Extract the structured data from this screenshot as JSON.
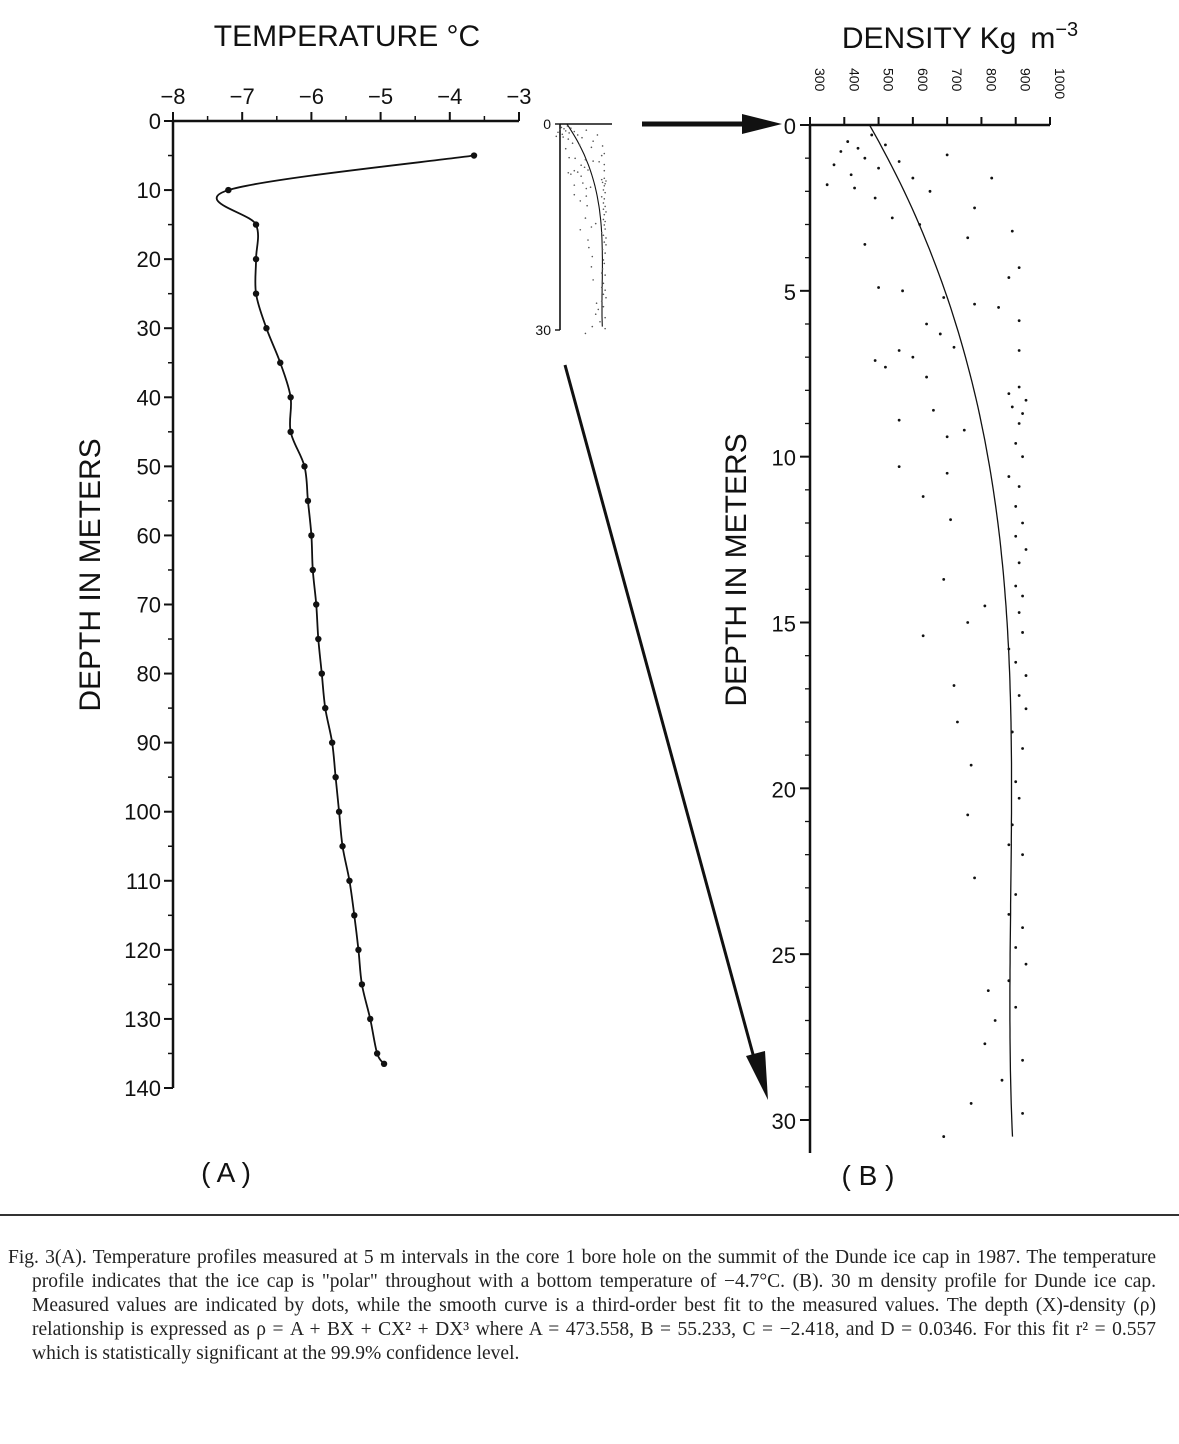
{
  "chart_data": [
    {
      "type": "line",
      "panel_label": "( A )",
      "title": "",
      "xlabel": "TEMPERATURE °C",
      "ylabel": "DEPTH IN METERS",
      "xlim": [
        -8,
        -3
      ],
      "ylim": [
        0,
        140
      ],
      "xticks": [
        "−8",
        "−7",
        "−6",
        "−5",
        "−4",
        "−3"
      ],
      "yticks": [
        "0",
        "10",
        "20",
        "30",
        "40",
        "50",
        "60",
        "70",
        "80",
        "90",
        "100",
        "110",
        "120",
        "130",
        "140"
      ],
      "series": [
        {
          "points": [
            {
              "x": -3.65,
              "y": 5
            },
            {
              "x": -7.2,
              "y": 10
            },
            {
              "x": -6.8,
              "y": 15
            },
            {
              "x": -6.8,
              "y": 20
            },
            {
              "x": -6.8,
              "y": 25
            },
            {
              "x": -6.65,
              "y": 30
            },
            {
              "x": -6.45,
              "y": 35
            },
            {
              "x": -6.3,
              "y": 40
            },
            {
              "x": -6.3,
              "y": 45
            },
            {
              "x": -6.1,
              "y": 50
            },
            {
              "x": -6.05,
              "y": 55
            },
            {
              "x": -6.0,
              "y": 60
            },
            {
              "x": -5.98,
              "y": 65
            },
            {
              "x": -5.93,
              "y": 70
            },
            {
              "x": -5.9,
              "y": 75
            },
            {
              "x": -5.85,
              "y": 80
            },
            {
              "x": -5.8,
              "y": 85
            },
            {
              "x": -5.7,
              "y": 90
            },
            {
              "x": -5.65,
              "y": 95
            },
            {
              "x": -5.6,
              "y": 100
            },
            {
              "x": -5.55,
              "y": 105
            },
            {
              "x": -5.45,
              "y": 110
            },
            {
              "x": -5.38,
              "y": 115
            },
            {
              "x": -5.32,
              "y": 120
            },
            {
              "x": -5.27,
              "y": 125
            },
            {
              "x": -5.15,
              "y": 130
            },
            {
              "x": -5.05,
              "y": 135
            },
            {
              "x": -4.95,
              "y": 136.5
            }
          ]
        }
      ]
    },
    {
      "type": "scatter",
      "panel_label": "( B )",
      "title": "",
      "xlabel": "DENSITY Kg",
      "xlabel_unit": "m",
      "xlabel_exp": "−3",
      "ylabel": "DEPTH IN METERS",
      "xlim": [
        300,
        1000
      ],
      "ylim": [
        0,
        31
      ],
      "xticks": [
        "300",
        "400",
        "500",
        "600",
        "700",
        "800",
        "900",
        "1000"
      ],
      "yticks": [
        "0",
        "5",
        "10",
        "15",
        "20",
        "25",
        "30"
      ],
      "fit_curve": {
        "A": 473.558,
        "B": 55.233,
        "C": -2.418,
        "D": 0.0346,
        "x_range": [
          0,
          30.5
        ]
      },
      "points": [
        {
          "x": 410,
          "y": 0.5
        },
        {
          "x": 390,
          "y": 0.8
        },
        {
          "x": 440,
          "y": 0.7
        },
        {
          "x": 480,
          "y": 0.3
        },
        {
          "x": 520,
          "y": 0.6
        },
        {
          "x": 460,
          "y": 1.0
        },
        {
          "x": 370,
          "y": 1.2
        },
        {
          "x": 420,
          "y": 1.5
        },
        {
          "x": 500,
          "y": 1.3
        },
        {
          "x": 560,
          "y": 1.1
        },
        {
          "x": 350,
          "y": 1.8
        },
        {
          "x": 430,
          "y": 1.9
        },
        {
          "x": 600,
          "y": 1.6
        },
        {
          "x": 490,
          "y": 2.2
        },
        {
          "x": 650,
          "y": 2.0
        },
        {
          "x": 700,
          "y": 0.9
        },
        {
          "x": 780,
          "y": 2.5
        },
        {
          "x": 830,
          "y": 1.6
        },
        {
          "x": 540,
          "y": 2.8
        },
        {
          "x": 620,
          "y": 3.0
        },
        {
          "x": 760,
          "y": 3.4
        },
        {
          "x": 460,
          "y": 3.6
        },
        {
          "x": 890,
          "y": 3.2
        },
        {
          "x": 910,
          "y": 4.3
        },
        {
          "x": 880,
          "y": 4.6
        },
        {
          "x": 500,
          "y": 4.9
        },
        {
          "x": 570,
          "y": 5.0
        },
        {
          "x": 690,
          "y": 5.2
        },
        {
          "x": 780,
          "y": 5.4
        },
        {
          "x": 850,
          "y": 5.5
        },
        {
          "x": 910,
          "y": 5.9
        },
        {
          "x": 640,
          "y": 6.0
        },
        {
          "x": 680,
          "y": 6.3
        },
        {
          "x": 720,
          "y": 6.7
        },
        {
          "x": 560,
          "y": 6.8
        },
        {
          "x": 600,
          "y": 7.0
        },
        {
          "x": 490,
          "y": 7.1
        },
        {
          "x": 520,
          "y": 7.3
        },
        {
          "x": 910,
          "y": 6.8
        },
        {
          "x": 640,
          "y": 7.6
        },
        {
          "x": 910,
          "y": 7.9
        },
        {
          "x": 880,
          "y": 8.1
        },
        {
          "x": 930,
          "y": 8.3
        },
        {
          "x": 890,
          "y": 8.5
        },
        {
          "x": 920,
          "y": 8.7
        },
        {
          "x": 910,
          "y": 9.0
        },
        {
          "x": 560,
          "y": 8.9
        },
        {
          "x": 660,
          "y": 8.6
        },
        {
          "x": 750,
          "y": 9.2
        },
        {
          "x": 700,
          "y": 9.4
        },
        {
          "x": 900,
          "y": 9.6
        },
        {
          "x": 920,
          "y": 10.0
        },
        {
          "x": 560,
          "y": 10.3
        },
        {
          "x": 700,
          "y": 10.5
        },
        {
          "x": 880,
          "y": 10.6
        },
        {
          "x": 910,
          "y": 10.9
        },
        {
          "x": 630,
          "y": 11.2
        },
        {
          "x": 900,
          "y": 11.5
        },
        {
          "x": 710,
          "y": 11.9
        },
        {
          "x": 920,
          "y": 12.0
        },
        {
          "x": 900,
          "y": 12.4
        },
        {
          "x": 930,
          "y": 12.8
        },
        {
          "x": 910,
          "y": 13.2
        },
        {
          "x": 690,
          "y": 13.7
        },
        {
          "x": 900,
          "y": 13.9
        },
        {
          "x": 920,
          "y": 14.2
        },
        {
          "x": 810,
          "y": 14.5
        },
        {
          "x": 910,
          "y": 14.7
        },
        {
          "x": 760,
          "y": 15.0
        },
        {
          "x": 920,
          "y": 15.3
        },
        {
          "x": 630,
          "y": 15.4
        },
        {
          "x": 880,
          "y": 15.8
        },
        {
          "x": 900,
          "y": 16.2
        },
        {
          "x": 930,
          "y": 16.6
        },
        {
          "x": 720,
          "y": 16.9
        },
        {
          "x": 910,
          "y": 17.2
        },
        {
          "x": 930,
          "y": 17.6
        },
        {
          "x": 730,
          "y": 18.0
        },
        {
          "x": 890,
          "y": 18.3
        },
        {
          "x": 920,
          "y": 18.8
        },
        {
          "x": 770,
          "y": 19.3
        },
        {
          "x": 900,
          "y": 19.8
        },
        {
          "x": 910,
          "y": 20.3
        },
        {
          "x": 760,
          "y": 20.8
        },
        {
          "x": 890,
          "y": 21.1
        },
        {
          "x": 880,
          "y": 21.7
        },
        {
          "x": 920,
          "y": 22.0
        },
        {
          "x": 780,
          "y": 22.7
        },
        {
          "x": 900,
          "y": 23.2
        },
        {
          "x": 880,
          "y": 23.8
        },
        {
          "x": 920,
          "y": 24.2
        },
        {
          "x": 900,
          "y": 24.8
        },
        {
          "x": 930,
          "y": 25.3
        },
        {
          "x": 880,
          "y": 25.8
        },
        {
          "x": 820,
          "y": 26.1
        },
        {
          "x": 900,
          "y": 26.6
        },
        {
          "x": 840,
          "y": 27.0
        },
        {
          "x": 810,
          "y": 27.7
        },
        {
          "x": 920,
          "y": 28.2
        },
        {
          "x": 860,
          "y": 28.8
        },
        {
          "x": 770,
          "y": 29.5
        },
        {
          "x": 920,
          "y": 29.8
        },
        {
          "x": 690,
          "y": 30.5
        }
      ]
    }
  ],
  "inset": {
    "ticks": [
      "0",
      "30"
    ]
  },
  "caption": "Fig. 3(A). Temperature profiles measured at 5 m intervals in the core 1 bore hole on the summit of the Dunde ice cap in 1987. The temperature profile indicates that the ice cap is \"polar\" throughout with a bottom temperature of −4.7°C. (B). 30 m density profile for Dunde ice cap. Measured values are indicated by dots, while the smooth curve is a third-order best fit to the measured values. The depth (X)-density (ρ) relationship is expressed as ρ = A + BX + CX² + DX³ where A = 473.558, B = 55.233, C = −2.418, and D = 0.0346. For this fit r² = 0.557 which is statistically significant at the 99.9% confidence level."
}
